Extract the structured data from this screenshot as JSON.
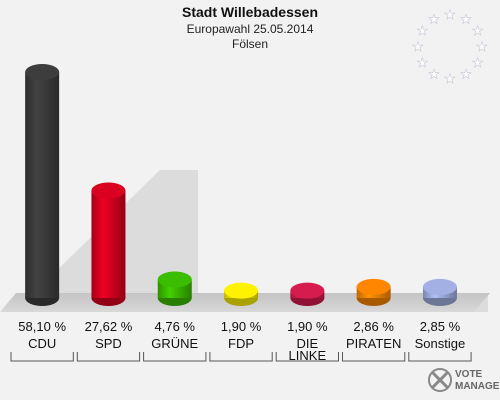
{
  "header": {
    "title": "Stadt Willebadessen",
    "subtitle": "Europawahl 25.05.2014",
    "location": "Fölsen"
  },
  "logo": {
    "line1": "VOTE",
    "line2": "MANAGER",
    "icon": "vote-manager-logo-icon"
  },
  "stars_icon": "eu-stars-icon",
  "chart_data": {
    "type": "bar",
    "title": "Stadt Willebadessen",
    "subtitle": "Europawahl 25.05.2014",
    "categories": [
      "CDU",
      "SPD",
      "GRÜNE",
      "FDP",
      "DIE LINKE",
      "PIRATEN",
      "Sonstige"
    ],
    "values": [
      58.1,
      27.62,
      4.76,
      1.9,
      1.9,
      2.86,
      2.85
    ],
    "labels": [
      "58,10 %",
      "27,62 %",
      "4,76 %",
      "1,90 %",
      "1,90 %",
      "2,86 %",
      "2,85 %"
    ],
    "colors": [
      "#3a3a3a",
      "#d0001e",
      "#39b500",
      "#f2e600",
      "#cc1a4a",
      "#f28000",
      "#9aa8d8"
    ],
    "ylim": [
      0,
      60
    ],
    "grid": false
  }
}
